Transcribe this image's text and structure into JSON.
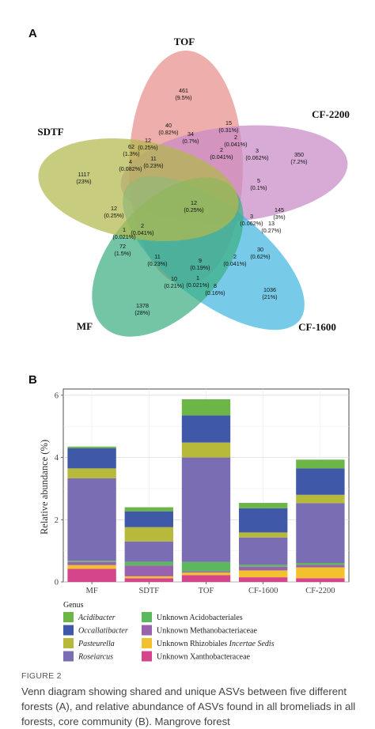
{
  "panel_a_label": "A",
  "panel_b_label": "B",
  "venn": {
    "sets": [
      {
        "name": "TOF",
        "color": "#e88f8c",
        "unique_count": "461",
        "unique_pct": "(9.5%)"
      },
      {
        "name": "CF-2200",
        "color": "#c98ac8",
        "unique_count": "350",
        "unique_pct": "(7.2%)"
      },
      {
        "name": "CF-1600",
        "color": "#42b7e1",
        "unique_count": "1036",
        "unique_pct": "(21%)"
      },
      {
        "name": "MF",
        "color": "#3dae84",
        "unique_count": "1378",
        "unique_pct": "(28%)"
      },
      {
        "name": "SDTF",
        "color": "#b1b84c",
        "unique_count": "1117",
        "unique_pct": "(23%)"
      }
    ],
    "regions": [
      {
        "count": "40",
        "pct": "(0.82%)"
      },
      {
        "count": "34",
        "pct": "(0.7%)"
      },
      {
        "count": "15",
        "pct": "(0.31%)"
      },
      {
        "count": "2",
        "pct": "(0.041%)"
      },
      {
        "count": "62",
        "pct": "(1.3%)"
      },
      {
        "count": "12",
        "pct": "(0.25%)"
      },
      {
        "count": "11",
        "pct": "(0.23%)"
      },
      {
        "count": "2",
        "pct": "(0.041%)"
      },
      {
        "count": "3",
        "pct": "(0.062%)"
      },
      {
        "count": "4",
        "pct": "(0.082%)"
      },
      {
        "count": "5",
        "pct": "(0.1%)"
      },
      {
        "count": "12",
        "pct": "(0.25%)"
      },
      {
        "count": "12",
        "pct": "(0.25%)"
      },
      {
        "count": "145",
        "pct": "(3%)"
      },
      {
        "count": "3",
        "pct": "(0.062%)"
      },
      {
        "count": "13",
        "pct": "(0.27%)"
      },
      {
        "count": "2",
        "pct": "(0.041%)"
      },
      {
        "count": "1",
        "pct": "(0.021%)"
      },
      {
        "count": "72",
        "pct": "(1.5%)"
      },
      {
        "count": "30",
        "pct": "(0.62%)"
      },
      {
        "count": "11",
        "pct": "(0.23%)"
      },
      {
        "count": "9",
        "pct": "(0.19%)"
      },
      {
        "count": "2",
        "pct": "(0.041%)"
      },
      {
        "count": "10",
        "pct": "(0.21%)"
      },
      {
        "count": "1",
        "pct": "(0.021%)"
      },
      {
        "count": "8",
        "pct": "(0.16%)"
      }
    ]
  },
  "chart_data": {
    "type": "bar",
    "stacked": true,
    "ylabel": "Relative abundance (%)",
    "ylim": [
      0,
      6.2
    ],
    "yticks": [
      "0",
      "2",
      "4",
      "6"
    ],
    "categories": [
      "MF",
      "SDTF",
      "TOF",
      "CF-1600",
      "CF-2200"
    ],
    "legend_title": "Genus",
    "series": [
      {
        "name": "Unknown Xanthobacteraceae",
        "color": "#d4458c",
        "italic": false,
        "values": [
          0.42,
          0.12,
          0.22,
          0.15,
          0.12
        ]
      },
      {
        "name": "Unknown Rhizobiales Incertae Sedis",
        "color": "#f3c12d",
        "italic": false,
        "values": [
          0.12,
          0.06,
          0.08,
          0.22,
          0.35
        ]
      },
      {
        "name": "Unknown Methanobacteriaceae",
        "color": "#9a62ae",
        "italic": false,
        "values": [
          0.1,
          0.35,
          0.04,
          0.12,
          0.08
        ]
      },
      {
        "name": "Unknown Acidobacteriales",
        "color": "#5cb85c",
        "italic": false,
        "values": [
          0.04,
          0.12,
          0.3,
          0.06,
          0.06
        ]
      },
      {
        "name": "Roseiarcus",
        "color": "#7b6db3",
        "italic": true,
        "values": [
          2.65,
          0.65,
          3.36,
          0.88,
          1.92
        ]
      },
      {
        "name": "Pasteurella",
        "color": "#b7b93a",
        "italic": true,
        "values": [
          0.32,
          0.46,
          0.48,
          0.16,
          0.27
        ]
      },
      {
        "name": "Occallatibacter",
        "color": "#3f58a8",
        "italic": true,
        "values": [
          0.65,
          0.51,
          0.87,
          0.78,
          0.85
        ]
      },
      {
        "name": "Acidibacter",
        "color": "#6cb547",
        "italic": true,
        "values": [
          0.05,
          0.13,
          0.52,
          0.17,
          0.28
        ]
      }
    ],
    "legend_order": [
      {
        "label": "Acidibacter",
        "italic": true,
        "color": "#6cb547"
      },
      {
        "label": "Unknown Acidobacteriales",
        "italic": false,
        "color": "#5cb85c"
      },
      {
        "label": "Occallatibacter",
        "italic": true,
        "color": "#3f58a8"
      },
      {
        "label": "Unknown Methanobacteriaceae",
        "italic": false,
        "color": "#9a62ae"
      },
      {
        "label": "Pasteurella",
        "italic": true,
        "color": "#b7b93a"
      },
      {
        "label": "Unknown Rhizobiales ",
        "italic_suffix": "Incertae Sedis",
        "italic": false,
        "color": "#f3c12d"
      },
      {
        "label": "Roseiarcus",
        "italic": true,
        "color": "#7b6db3"
      },
      {
        "label": "Unknown Xanthobacteraceae",
        "italic": false,
        "color": "#d4458c"
      }
    ]
  },
  "caption": {
    "figure_label": "FIGURE 2",
    "text": "Venn diagram showing shared and unique ASVs between five different forests (A), and relative abundance of ASVs found in all bromeliads in all forests, core community (B). Mangrove forest"
  }
}
